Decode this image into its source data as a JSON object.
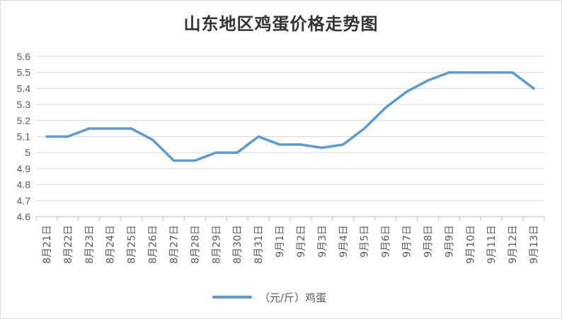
{
  "chart_data": {
    "type": "line",
    "title": "山东地区鸡蛋价格走势图",
    "categories": [
      "8月21日",
      "8月22日",
      "8月23日",
      "8月24日",
      "8月25日",
      "8月26日",
      "8月27日",
      "8月28日",
      "8月29日",
      "8月30日",
      "8月31日",
      "9月1日",
      "9月2日",
      "9月3日",
      "9月4日",
      "9月5日",
      "9月6日",
      "9月7日",
      "9月8日",
      "9月9日",
      "9月10日",
      "9月11日",
      "9月12日",
      "9月13日"
    ],
    "series": [
      {
        "name": "（元/斤）鸡蛋",
        "color": "#5b9bd5",
        "values": [
          5.1,
          5.1,
          5.15,
          5.15,
          5.15,
          5.08,
          4.95,
          4.95,
          5.0,
          5.0,
          5.1,
          5.05,
          5.05,
          5.03,
          5.05,
          5.15,
          5.28,
          5.38,
          5.45,
          5.5,
          5.5,
          5.5,
          5.5,
          5.4
        ]
      }
    ],
    "ylim": [
      4.6,
      5.6
    ],
    "yticks": [
      "4.6",
      "4.7",
      "4.8",
      "4.9",
      "5",
      "5.1",
      "5.2",
      "5.3",
      "5.4",
      "5.5",
      "5.6"
    ],
    "grid": true,
    "legend": "bottom"
  }
}
